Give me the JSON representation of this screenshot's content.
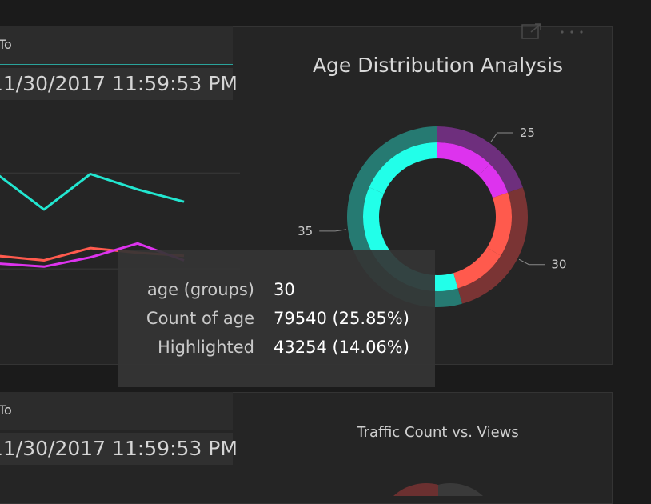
{
  "slicers": [
    {
      "label": "To",
      "value": "11/30/2017 11:59:53 PM"
    },
    {
      "label": "To",
      "value": "11/30/2017 11:59:53 PM"
    }
  ],
  "line_chart": {
    "chart_data": {
      "type": "line",
      "ylim": [
        0,
        100
      ],
      "series": [
        {
          "color": "#22e6d0",
          "values": [
            78,
            55,
            78,
            68,
            60
          ]
        },
        {
          "color": "#ff5a4d",
          "values": [
            25,
            22,
            30,
            27,
            25
          ]
        },
        {
          "color": "#dd33ee",
          "values": [
            20,
            18,
            24,
            33,
            22
          ]
        }
      ],
      "gridlines": [
        78.6,
        16.5
      ]
    }
  },
  "donut": {
    "title": "Age Distribution Analysis",
    "chart_data": {
      "type": "pie",
      "title": "Age Distribution Analysis",
      "categories": [
        "25",
        "30",
        "35"
      ],
      "values": [
        19.73,
        25.85,
        54.42
      ],
      "highlighted": [
        12.5,
        14.06,
        35.9
      ],
      "colors": [
        "#dd33ee",
        "#ff5a4d",
        "#22ffe9"
      ],
      "dim_colors": [
        "#6e2f7d",
        "#7a3434",
        "#267a72"
      ]
    },
    "labels": [
      "25",
      "30",
      "35"
    ]
  },
  "tooltip": {
    "rows": [
      {
        "label": "age (groups)",
        "value": "30"
      },
      {
        "label": "Count of age",
        "value": "79540 (25.85%)"
      },
      {
        "label": "Highlighted",
        "value": "43254 (14.06%)"
      }
    ]
  },
  "scatter": {
    "title": "Traffic Count vs. Views"
  },
  "icons": {
    "focus": "focus-mode-icon",
    "more": "more-options-icon"
  }
}
